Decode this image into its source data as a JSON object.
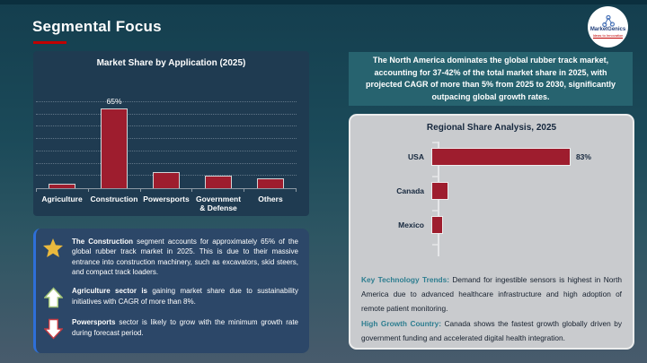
{
  "slide": {
    "title": "Segmental Focus"
  },
  "logo": {
    "brand": "MarketGenics",
    "tagline": "Ideas to Innovation"
  },
  "colors": {
    "accent_red": "#c00000",
    "bar_maroon": "#9e1d2e",
    "teal_box": "#27636f",
    "left_panel_navy": "#1f3b51",
    "insight_box_navy": "#2c4768",
    "insight_left_border_blue": "#2e6fd8",
    "gray_panel": "#c9cbce",
    "note_label_teal": "#2e7e90",
    "dark_navy_text": "#15273d",
    "star_gold": "#eab93d",
    "up_arrow_green": "#a3c577",
    "down_arrow_red": "#c53b43"
  },
  "chart_data": [
    {
      "type": "bar",
      "orientation": "vertical",
      "title": "Market Share by Application (2025)",
      "categories": [
        "Agriculture",
        "Construction",
        "Powersports",
        "Government & Defense",
        "Others"
      ],
      "values": [
        4,
        65,
        13,
        10,
        8
      ],
      "unit": "%",
      "ylim": [
        0,
        70
      ],
      "grid": "horizontal dotted lines every 10%, no y-axis tick labels",
      "data_labels": [
        "",
        "65%",
        "",
        "",
        ""
      ],
      "legend": "none"
    },
    {
      "type": "bar",
      "orientation": "horizontal",
      "title": "Regional Share Analysis, 2025",
      "categories": [
        "USA",
        "Canada",
        "Mexico"
      ],
      "values": [
        83,
        10,
        7
      ],
      "unit": "%",
      "xlim": [
        0,
        100
      ],
      "grid": "off",
      "data_labels": [
        "83%",
        "",
        ""
      ],
      "legend": "none"
    }
  ],
  "summary_box": {
    "text": "The North America dominates the global rubber track market, accounting for 37-42% of the total market share in 2025, with projected CAGR of more than 5% from 2025 to 2030, significantly outpacing global growth rates."
  },
  "insights": [
    {
      "icon": "star-icon",
      "prefix": "The Construction",
      "text": " segment accounts for approximately 65% of the global rubber track market in 2025. This is due to their massive entrance into construction machinery, such as excavators, skid steers, and compact track loaders."
    },
    {
      "icon": "up-arrow-icon",
      "prefix": "Agriculture sector is",
      "text": " gaining market share due to sustainability initiatives with CAGR of more than 8%."
    },
    {
      "icon": "down-arrow-icon",
      "prefix": "Powersports",
      "text": " sector is likely to grow with the minimum growth rate during forecast period."
    }
  ],
  "regional_notes": [
    {
      "label": "Key Technology Trends:",
      "text": " Demand for ingestible sensors is highest in North America due to advanced healthcare infrastructure and high adoption of remote patient monitoring."
    },
    {
      "label": "High Growth Country:",
      "text": " Canada shows the fastest growth globally driven by government funding and accelerated digital health integration."
    }
  ]
}
